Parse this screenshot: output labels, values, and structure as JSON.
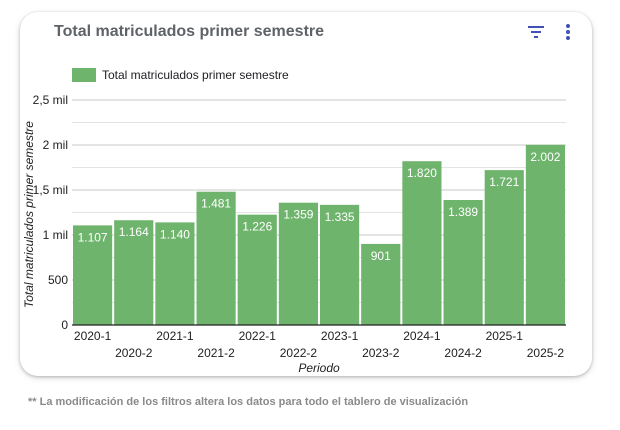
{
  "card": {
    "title": "Total matriculados primer semestre",
    "filter_icon": "filter-icon",
    "menu_icon": "more-vert-icon"
  },
  "footnote": "** La modificación de los filtros altera los datos para todo el tablero de visualización",
  "colors": {
    "bar": "#6fb46c",
    "accent": "#3f51b5",
    "grid": "#c8c8c8"
  },
  "chart_data": {
    "type": "bar",
    "title": "",
    "xlabel": "Periodo",
    "ylabel": "Total matriculados primer semestre",
    "legend": "top-left",
    "grid": true,
    "ylim": [
      0,
      2500
    ],
    "y_ticks": [
      {
        "value": 0,
        "label": "0"
      },
      {
        "value": 500,
        "label": "500"
      },
      {
        "value": 1000,
        "label": "1 mil"
      },
      {
        "value": 1500,
        "label": "1,5 mil"
      },
      {
        "value": 2000,
        "label": "2 mil"
      },
      {
        "value": 2500,
        "label": "2,5 mil"
      }
    ],
    "categories": [
      "2020-1",
      "2020-2",
      "2021-1",
      "2021-2",
      "2022-1",
      "2022-2",
      "2023-1",
      "2023-2",
      "2024-1",
      "2024-2",
      "2025-1",
      "2025-2"
    ],
    "series": [
      {
        "name": "Total matriculados primer semestre",
        "values": [
          1107,
          1164,
          1140,
          1481,
          1226,
          1359,
          1335,
          901,
          1820,
          1389,
          1721,
          2002
        ],
        "labels": [
          "1.107",
          "1.164",
          "1.140",
          "1.481",
          "1.226",
          "1.359",
          "1.335",
          "901",
          "1.820",
          "1.389",
          "1.721",
          "2.002"
        ]
      }
    ]
  }
}
